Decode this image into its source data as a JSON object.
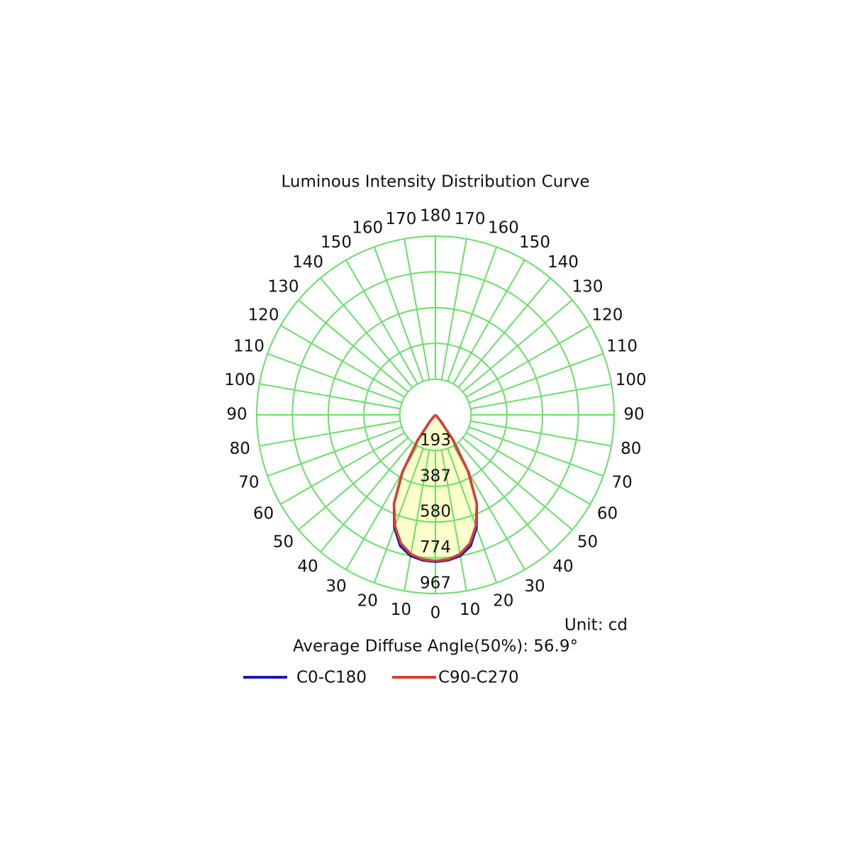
{
  "chart_data": {
    "type": "polar",
    "title": "Luminous Intensity Distribution Curve",
    "unit": "Unit: cd",
    "note": "Average Diffuse Angle(50%): 56.9°",
    "theta": [
      0,
      5,
      10,
      15,
      20,
      25,
      30,
      35,
      40,
      45,
      50,
      55,
      60,
      65,
      70,
      75,
      80,
      85,
      90
    ],
    "series": [
      {
        "name": "C0-C180",
        "color": "#1c1cb0",
        "values": [
          795,
          790,
          775,
          735,
          650,
          530,
          355,
          165,
          45,
          8,
          0,
          0,
          0,
          0,
          0,
          0,
          0,
          0,
          0
        ]
      },
      {
        "name": "C90-C270",
        "color": "#d9402e",
        "values": [
          790,
          785,
          765,
          720,
          640,
          530,
          360,
          170,
          50,
          10,
          0,
          0,
          0,
          0,
          0,
          0,
          0,
          0,
          0
        ]
      }
    ],
    "rlim": [
      0,
      967
    ],
    "rticks": [
      193,
      387,
      580,
      774,
      967
    ],
    "thetaticks": [
      0,
      10,
      20,
      30,
      40,
      50,
      60,
      70,
      80,
      90,
      100,
      110,
      120,
      130,
      140,
      150,
      160,
      170,
      180
    ],
    "grid": true,
    "grid_color": "#66e066",
    "fill_color": "#ffffcc"
  }
}
